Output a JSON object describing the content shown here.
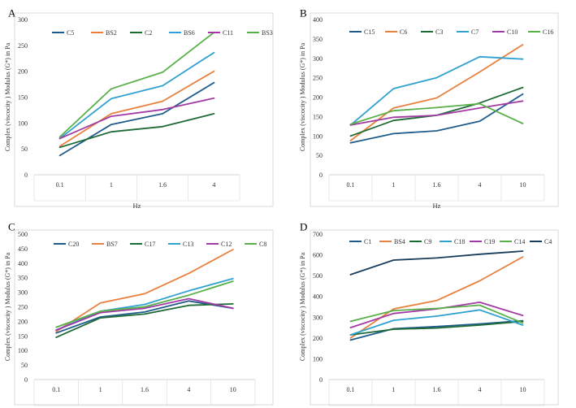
{
  "chart_data": [
    {
      "panel": "A",
      "type": "line",
      "categories": [
        "0.1",
        "1",
        "1.6",
        "4"
      ],
      "xlabel": "Hz",
      "ylabel": "Complex (viscocity ) Modulus (G*) in Pa",
      "ylim": [
        0,
        300
      ],
      "yticks": [
        "0",
        "50",
        "100",
        "150",
        "200",
        "250",
        "300"
      ],
      "legend": "top",
      "series": [
        {
          "name": "C5",
          "color": "#1f5c8b",
          "values": [
            37,
            97,
            118,
            178
          ]
        },
        {
          "name": "BS2",
          "color": "#e8803e",
          "values": [
            55,
            118,
            142,
            200
          ]
        },
        {
          "name": "C2",
          "color": "#1e6b35",
          "values": [
            53,
            83,
            93,
            118
          ]
        },
        {
          "name": "BS6",
          "color": "#2fa1d0",
          "values": [
            70,
            147,
            172,
            236
          ]
        },
        {
          "name": "C11",
          "color": "#a23aa6",
          "values": [
            70,
            113,
            126,
            148
          ]
        },
        {
          "name": "BS3",
          "color": "#59b04a",
          "values": [
            73,
            166,
            198,
            275
          ]
        }
      ]
    },
    {
      "panel": "B",
      "type": "line",
      "categories": [
        "0.1",
        "1",
        "1.6",
        "4",
        "10"
      ],
      "xlabel": "Hz",
      "ylabel": "Complex (viscocity ) Modulus (G*) in Pa",
      "ylim": [
        0,
        400
      ],
      "yticks": [
        "0",
        "50",
        "100",
        "150",
        "200",
        "250",
        "300",
        "350",
        "400"
      ],
      "legend": "top",
      "series": [
        {
          "name": "C15",
          "color": "#1f5c8b",
          "values": [
            82,
            106,
            113,
            138,
            208
          ]
        },
        {
          "name": "C6",
          "color": "#e8803e",
          "values": [
            88,
            172,
            198,
            265,
            335
          ]
        },
        {
          "name": "C3",
          "color": "#1e6b35",
          "values": [
            100,
            140,
            153,
            185,
            225
          ]
        },
        {
          "name": "C7",
          "color": "#2fa1d0",
          "values": [
            128,
            222,
            250,
            304,
            298
          ]
        },
        {
          "name": "C10",
          "color": "#a23aa6",
          "values": [
            128,
            148,
            153,
            172,
            190
          ]
        },
        {
          "name": "C16",
          "color": "#59b04a",
          "values": [
            130,
            165,
            173,
            183,
            132
          ]
        }
      ]
    },
    {
      "panel": "C",
      "type": "line",
      "categories": [
        "0.1",
        "1",
        "1.6",
        "4",
        "10"
      ],
      "xlabel": "Hz",
      "ylabel": "Complex (viscocity ) Modulus (G*) in Pa",
      "ylim": [
        0,
        500
      ],
      "yticks": [
        "0",
        "50",
        "100",
        "150",
        "200",
        "250",
        "300",
        "350",
        "400",
        "450",
        "500"
      ],
      "legend": "top",
      "series": [
        {
          "name": "C20",
          "color": "#1f5c8b",
          "values": [
            160,
            215,
            232,
            270,
            245
          ]
        },
        {
          "name": "BS7",
          "color": "#e8803e",
          "values": [
            165,
            263,
            295,
            365,
            447
          ]
        },
        {
          "name": "C17",
          "color": "#1e6b35",
          "values": [
            145,
            212,
            225,
            255,
            260
          ]
        },
        {
          "name": "C13",
          "color": "#2fa1d0",
          "values": [
            170,
            235,
            258,
            305,
            347
          ]
        },
        {
          "name": "C12",
          "color": "#a23aa6",
          "values": [
            170,
            230,
            245,
            278,
            245
          ]
        },
        {
          "name": "C8",
          "color": "#59b04a",
          "values": [
            180,
            235,
            250,
            290,
            338
          ]
        }
      ]
    },
    {
      "panel": "D",
      "type": "line",
      "categories": [
        "0.1",
        "1",
        "1.6",
        "4",
        "10"
      ],
      "xlabel": "Hz",
      "ylabel": "Complex (viscocity ) Modulus (G*) in Pa",
      "ylim": [
        0,
        700
      ],
      "yticks": [
        "0",
        "100",
        "200",
        "300",
        "400",
        "500",
        "600",
        "700"
      ],
      "legend": "top",
      "series": [
        {
          "name": "C1",
          "color": "#1f5c8b",
          "values": [
            190,
            245,
            255,
            268,
            283
          ]
        },
        {
          "name": "BS4",
          "color": "#e8803e",
          "values": [
            200,
            340,
            380,
            475,
            590
          ]
        },
        {
          "name": "C9",
          "color": "#1e6b35",
          "values": [
            215,
            242,
            248,
            262,
            280
          ]
        },
        {
          "name": "C18",
          "color": "#2fa1d0",
          "values": [
            215,
            285,
            305,
            335,
            262
          ]
        },
        {
          "name": "C19",
          "color": "#a23aa6",
          "values": [
            250,
            318,
            340,
            372,
            308
          ]
        },
        {
          "name": "C14",
          "color": "#59b04a",
          "values": [
            280,
            332,
            342,
            358,
            272
          ]
        },
        {
          "name": "C4",
          "color": "#1a3d5c",
          "values": [
            505,
            575,
            585,
            603,
            618
          ]
        }
      ]
    }
  ]
}
